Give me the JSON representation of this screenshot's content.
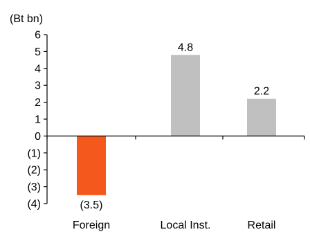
{
  "chart_data": {
    "type": "bar",
    "unit_label": "(Bt bn)",
    "categories": [
      "Foreign",
      "Local Inst.",
      "Retail"
    ],
    "values": [
      -3.5,
      4.8,
      2.2
    ],
    "data_labels": [
      "(3.5)",
      "4.8",
      "2.2"
    ],
    "y_ticks": [
      {
        "value": 6,
        "label": "6"
      },
      {
        "value": 5,
        "label": "5"
      },
      {
        "value": 4,
        "label": "4"
      },
      {
        "value": 3,
        "label": "3"
      },
      {
        "value": 2,
        "label": "2"
      },
      {
        "value": 1,
        "label": "1"
      },
      {
        "value": 0,
        "label": "0"
      },
      {
        "value": -1,
        "label": "(1)"
      },
      {
        "value": -2,
        "label": "(2)"
      },
      {
        "value": -3,
        "label": "(3)"
      },
      {
        "value": -4,
        "label": "(4)"
      }
    ],
    "ylim": [
      -4,
      6
    ],
    "grid": false,
    "legend": "none",
    "colors": {
      "negative_bar": "#F4581C",
      "positive_bar": "#C0C0C0",
      "axis": "#000000",
      "text": "#000000"
    }
  }
}
